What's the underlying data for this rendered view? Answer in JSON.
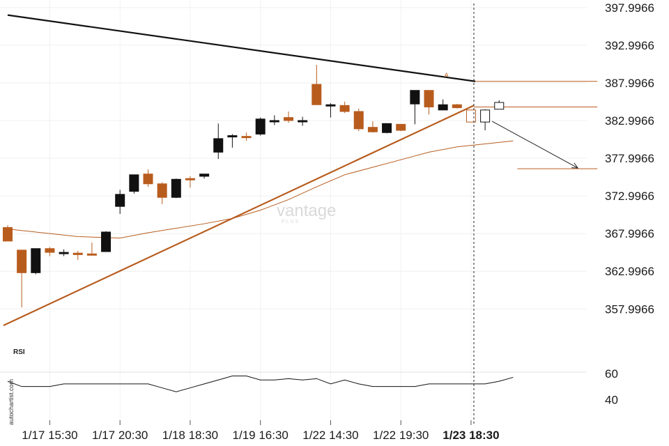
{
  "chart_data": {
    "type": "candlestick",
    "y_ticks": [
      "397.9966",
      "392.9966",
      "387.9966",
      "382.9966",
      "377.9966",
      "372.9966",
      "367.9966",
      "362.9966",
      "357.9966"
    ],
    "y_tick_values": [
      397.9966,
      392.9966,
      387.9966,
      382.9966,
      377.9966,
      372.9966,
      367.9966,
      362.9966,
      357.9966
    ],
    "ylim": [
      355.8,
      399.0
    ],
    "x_ticks": [
      {
        "label": "1/17 15:30",
        "index": 3
      },
      {
        "label": "1/17 20:30",
        "index": 8
      },
      {
        "label": "1/18 18:30",
        "index": 13
      },
      {
        "label": "1/19 16:30",
        "index": 18
      },
      {
        "label": "1/22 14:30",
        "index": 23
      },
      {
        "label": "1/22 19:30",
        "index": 28
      },
      {
        "label": "1/23 18:30",
        "index": 33,
        "bold": true
      }
    ],
    "candles": [
      {
        "o": 368.8,
        "h": 369.1,
        "l": 367.0,
        "c": 367.0,
        "color": "brown"
      },
      {
        "o": 365.8,
        "h": 365.8,
        "l": 358.2,
        "c": 362.8,
        "color": "brown"
      },
      {
        "o": 362.8,
        "h": 366.0,
        "l": 362.6,
        "c": 366.0,
        "color": "black"
      },
      {
        "o": 366.0,
        "h": 366.2,
        "l": 365.0,
        "c": 365.5,
        "color": "brown"
      },
      {
        "o": 365.5,
        "h": 365.9,
        "l": 365.0,
        "c": 365.4,
        "color": "black"
      },
      {
        "o": 365.4,
        "h": 365.7,
        "l": 364.5,
        "c": 365.2,
        "color": "brown"
      },
      {
        "o": 365.3,
        "h": 366.8,
        "l": 365.1,
        "c": 365.3,
        "color": "brown"
      },
      {
        "o": 365.6,
        "h": 368.3,
        "l": 365.6,
        "c": 368.2,
        "color": "black"
      },
      {
        "o": 371.6,
        "h": 373.8,
        "l": 370.6,
        "c": 373.2,
        "color": "black"
      },
      {
        "o": 373.6,
        "h": 375.8,
        "l": 373.3,
        "c": 375.8,
        "color": "black"
      },
      {
        "o": 375.9,
        "h": 376.5,
        "l": 374.2,
        "c": 374.6,
        "color": "brown"
      },
      {
        "o": 374.6,
        "h": 374.8,
        "l": 371.9,
        "c": 372.8,
        "color": "brown"
      },
      {
        "o": 372.8,
        "h": 375.3,
        "l": 372.7,
        "c": 375.2,
        "color": "black"
      },
      {
        "o": 375.3,
        "h": 375.6,
        "l": 374.1,
        "c": 375.3,
        "color": "brown"
      },
      {
        "o": 375.6,
        "h": 375.9,
        "l": 375.3,
        "c": 375.9,
        "color": "black"
      },
      {
        "o": 378.8,
        "h": 382.6,
        "l": 377.9,
        "c": 380.6,
        "color": "black"
      },
      {
        "o": 380.9,
        "h": 381.2,
        "l": 379.4,
        "c": 381.0,
        "color": "black"
      },
      {
        "o": 380.9,
        "h": 381.4,
        "l": 380.3,
        "c": 380.9,
        "color": "brown"
      },
      {
        "o": 381.2,
        "h": 383.4,
        "l": 381.0,
        "c": 383.2,
        "color": "black"
      },
      {
        "o": 382.9,
        "h": 383.7,
        "l": 382.4,
        "c": 383.0,
        "color": "black"
      },
      {
        "o": 383.4,
        "h": 384.2,
        "l": 382.7,
        "c": 383.0,
        "color": "brown"
      },
      {
        "o": 383.0,
        "h": 383.5,
        "l": 382.3,
        "c": 383.0,
        "color": "black"
      },
      {
        "o": 387.8,
        "h": 390.4,
        "l": 385.1,
        "c": 385.1,
        "color": "brown"
      },
      {
        "o": 385.1,
        "h": 385.3,
        "l": 383.4,
        "c": 385.1,
        "color": "black"
      },
      {
        "o": 385.0,
        "h": 385.5,
        "l": 384.0,
        "c": 384.2,
        "color": "brown"
      },
      {
        "o": 384.2,
        "h": 384.6,
        "l": 381.6,
        "c": 381.9,
        "color": "brown"
      },
      {
        "o": 382.1,
        "h": 382.9,
        "l": 381.4,
        "c": 381.5,
        "color": "brown"
      },
      {
        "o": 381.4,
        "h": 382.6,
        "l": 381.3,
        "c": 382.6,
        "color": "black"
      },
      {
        "o": 382.5,
        "h": 382.5,
        "l": 381.6,
        "c": 381.7,
        "color": "brown"
      },
      {
        "o": 385.2,
        "h": 387.0,
        "l": 382.5,
        "c": 387.0,
        "color": "black"
      },
      {
        "o": 387.0,
        "h": 387.0,
        "l": 383.8,
        "c": 384.8,
        "color": "brown"
      },
      {
        "o": 384.4,
        "h": 385.8,
        "l": 384.4,
        "c": 385.1,
        "color": "black"
      },
      {
        "o": 385.1,
        "h": 385.2,
        "l": 384.6,
        "c": 384.7,
        "color": "brown"
      },
      {
        "o": 384.4,
        "h": 384.4,
        "l": 382.8,
        "c": 382.8,
        "color": "projected_brown"
      },
      {
        "o": 382.8,
        "h": 384.5,
        "l": 381.7,
        "c": 384.4,
        "color": "projected_black"
      },
      {
        "o": 384.5,
        "h": 385.7,
        "l": 384.5,
        "c": 385.4,
        "color": "projected_black"
      }
    ],
    "moving_average": [
      [
        0,
        368.6
      ],
      [
        5,
        367.6
      ],
      [
        8,
        367.4
      ],
      [
        10,
        368.1
      ],
      [
        12,
        368.7
      ],
      [
        14,
        369.3
      ],
      [
        16,
        370.0
      ],
      [
        18,
        371.1
      ],
      [
        20,
        372.5
      ],
      [
        22,
        374.2
      ],
      [
        24,
        375.8
      ],
      [
        26,
        376.8
      ],
      [
        28,
        377.8
      ],
      [
        30,
        378.8
      ],
      [
        32,
        379.5
      ],
      [
        34,
        379.9
      ],
      [
        36,
        380.3
      ]
    ],
    "trendlines": [
      {
        "from": [
          0,
          397.0
        ],
        "to": [
          33.3,
          388.2
        ],
        "color": "black"
      },
      {
        "from": [
          -0.3,
          355.8
        ],
        "to": [
          33.2,
          385.0
        ],
        "color": "brown"
      }
    ],
    "horizontal_levels": [
      {
        "price": 388.2,
        "from": 33.3,
        "to": 42
      },
      {
        "price": 384.8,
        "from": 33.2,
        "to": 42
      },
      {
        "price": 376.6,
        "from": 36.3,
        "to": 42
      }
    ],
    "projection_arrow": {
      "from": [
        34.5,
        382.9
      ],
      "to": [
        40.6,
        376.7
      ]
    },
    "pattern_label": {
      "text": "A",
      "index": 31.1,
      "price": 389.0
    },
    "current_marker_index": 33.2,
    "rsi": {
      "label": "RSI",
      "y_ticks": [
        "60",
        "40"
      ],
      "y_tick_values": [
        60,
        40
      ],
      "ylim": [
        35,
        62
      ],
      "values": [
        54,
        50,
        50,
        50,
        52,
        52,
        52,
        52,
        52,
        52,
        52,
        49,
        46,
        49,
        52,
        55,
        58,
        58,
        55,
        55,
        56,
        55,
        56,
        52,
        55,
        52,
        50,
        50,
        50,
        50,
        52,
        52,
        52,
        52,
        52,
        54,
        57
      ]
    }
  },
  "watermark": {
    "brand": "vantage",
    "sub": "PLUS"
  },
  "side_label": "autochartist.com"
}
